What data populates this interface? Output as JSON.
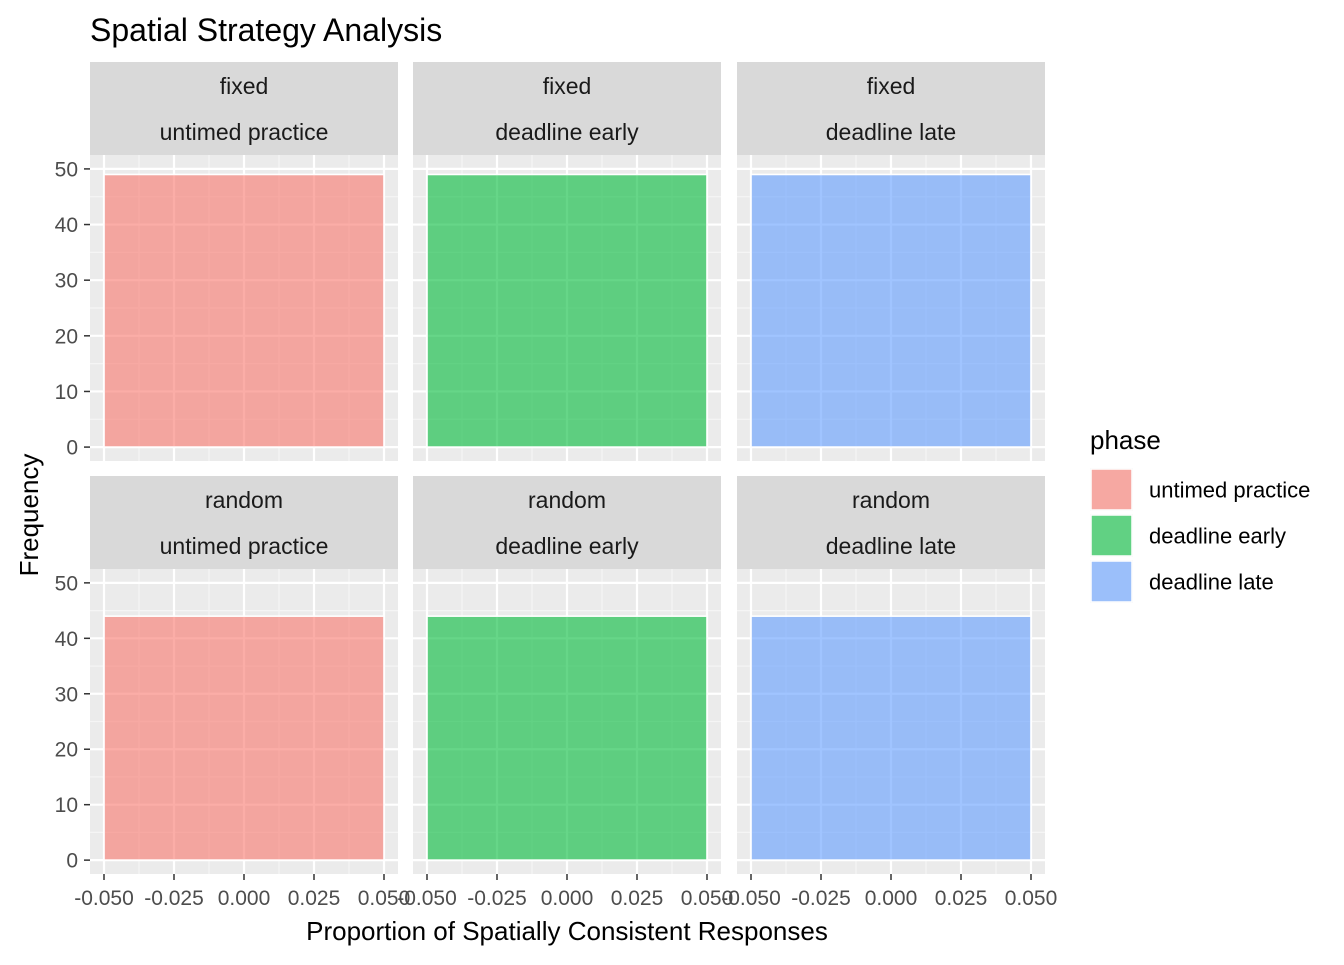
{
  "chart_data": {
    "type": "bar",
    "title": "Spatial Strategy Analysis",
    "xlabel": "Proportion of Spatially Consistent Responses",
    "ylabel": "Frequency",
    "xlim": [
      -0.05,
      0.05
    ],
    "ylim": [
      0,
      50
    ],
    "x_ticks": [
      "-0.050",
      "-0.025",
      "0.000",
      "0.025",
      "0.050"
    ],
    "y_ticks": [
      "0",
      "10",
      "20",
      "30",
      "40",
      "50"
    ],
    "grid": true,
    "legend": {
      "title": "phase",
      "position": "right",
      "entries": [
        {
          "label": "untimed practice",
          "color": "#F8766D"
        },
        {
          "label": "deadline early",
          "color": "#00BA38"
        },
        {
          "label": "deadline late",
          "color": "#619CFF"
        }
      ]
    },
    "panels": [
      {
        "row": "fixed",
        "col": "untimed practice",
        "x": [
          -0.05,
          0.05
        ],
        "value": 49,
        "color": "#F8766D"
      },
      {
        "row": "fixed",
        "col": "deadline early",
        "x": [
          -0.05,
          0.05
        ],
        "value": 49,
        "color": "#00BA38"
      },
      {
        "row": "fixed",
        "col": "deadline late",
        "x": [
          -0.05,
          0.05
        ],
        "value": 49,
        "color": "#619CFF"
      },
      {
        "row": "random",
        "col": "untimed practice",
        "x": [
          -0.05,
          0.05
        ],
        "value": 44,
        "color": "#F8766D"
      },
      {
        "row": "random",
        "col": "deadline early",
        "x": [
          -0.05,
          0.05
        ],
        "value": 44,
        "color": "#00BA38"
      },
      {
        "row": "random",
        "col": "deadline late",
        "x": [
          -0.05,
          0.05
        ],
        "value": 44,
        "color": "#619CFF"
      }
    ]
  }
}
